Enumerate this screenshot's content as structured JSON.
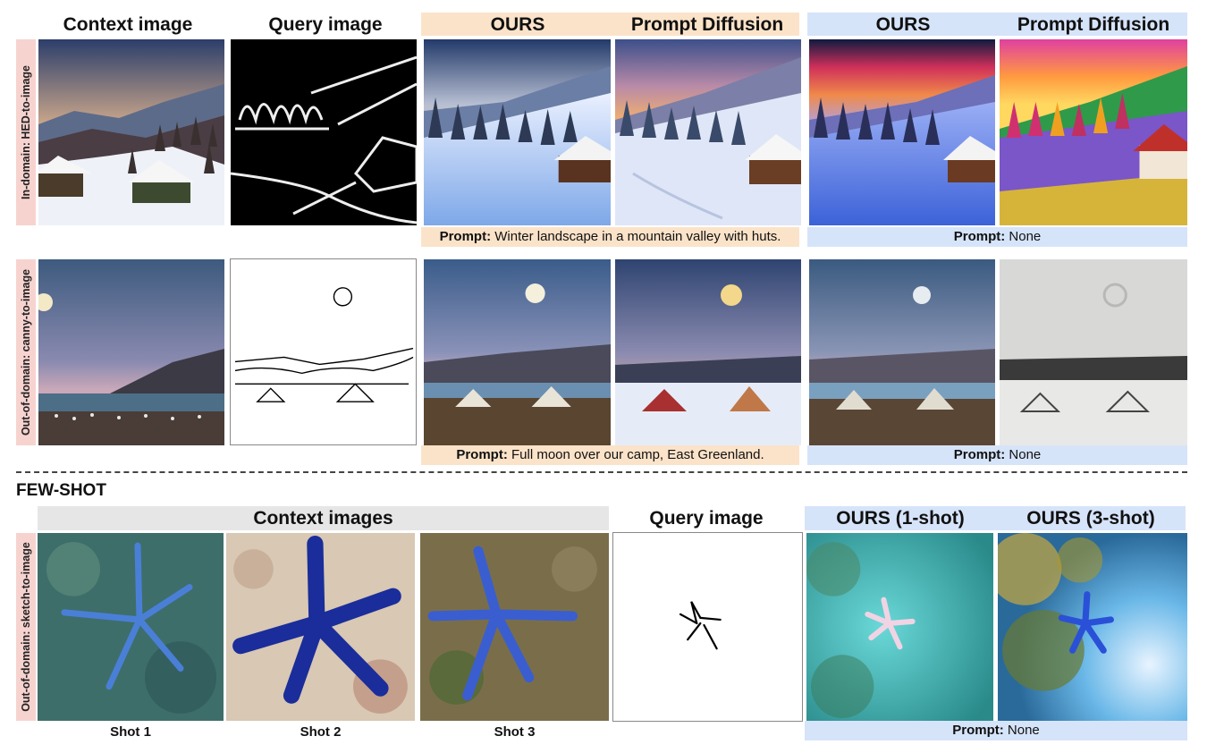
{
  "headers": {
    "context_image": "Context image",
    "query_image": "Query image",
    "ours_1": "OURS",
    "prompt_diffusion_1": "Prompt Diffusion",
    "ours_2": "OURS",
    "prompt_diffusion_2": "Prompt Diffusion"
  },
  "rows": {
    "row1_label": "In-domain: HED-to-image",
    "row2_label": "Out-of-domain: canny-to-image",
    "row3_label": "Out-of-domain: sketch-to-image"
  },
  "prompts": {
    "prefix": "Prompt:",
    "row1_text": " Winter landscape in a mountain valley with huts.",
    "row1_none": " None",
    "row2_text": " Full moon over our camp, East Greenland.",
    "row2_none": " None",
    "row3_none": " None"
  },
  "fewshot": {
    "title": "FEW-SHOT",
    "context_images": "Context images",
    "query_image": "Query image",
    "ours_1shot": "OURS (1-shot)",
    "ours_3shot": "OURS (3-shot)",
    "shot1": "Shot 1",
    "shot2": "Shot 2",
    "shot3": "Shot 3"
  },
  "colors": {
    "orange_band": "#fbe3c9",
    "blue_band": "#d6e4fa",
    "gray_band": "#e6e6e6",
    "row_label_bg": "#f7d3d0"
  }
}
